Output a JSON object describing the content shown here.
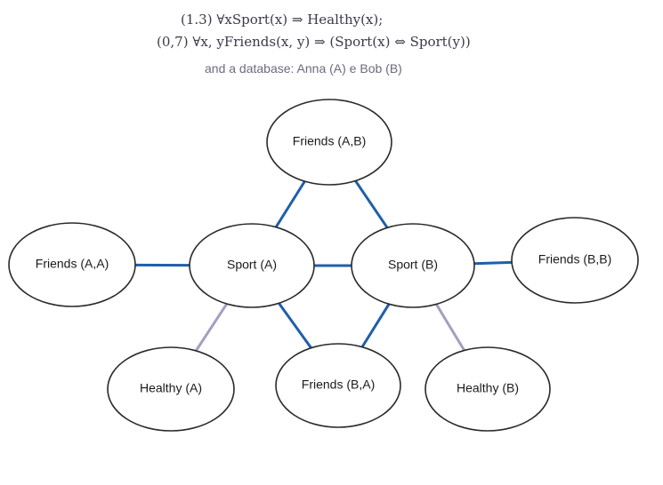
{
  "header": {
    "formula_1": "(1.3) ∀xSport(x) ⇒ Healthy(x);",
    "formula_2": "(0,7) ∀x, yFriends(x, y) ⇒ (Sport(x) ⇔ Sport(y))",
    "subtitle": "and a database: Anna (A) e Bob (B)"
  },
  "colors": {
    "friends_edge": "#1f5fa8",
    "healthy_edge": "#a49fbf"
  },
  "nodes": [
    {
      "id": "friends-ab",
      "label": "Friends (A,B)"
    },
    {
      "id": "friends-aa",
      "label": "Friends (A,A)"
    },
    {
      "id": "sport-a",
      "label": "Sport (A)"
    },
    {
      "id": "sport-b",
      "label": "Sport (B)"
    },
    {
      "id": "friends-bb",
      "label": "Friends (B,B)"
    },
    {
      "id": "healthy-a",
      "label": "Healthy (A)"
    },
    {
      "id": "friends-ba",
      "label": "Friends (B,A)"
    },
    {
      "id": "healthy-b",
      "label": "Healthy (B)"
    }
  ],
  "edges": [
    {
      "from": "friends-aa",
      "to": "sport-a",
      "kind": "friends"
    },
    {
      "from": "sport-a",
      "to": "sport-b",
      "kind": "friends"
    },
    {
      "from": "sport-b",
      "to": "friends-bb",
      "kind": "friends"
    },
    {
      "from": "friends-ab",
      "to": "sport-a",
      "kind": "friends"
    },
    {
      "from": "friends-ab",
      "to": "sport-b",
      "kind": "friends"
    },
    {
      "from": "sport-a",
      "to": "friends-ba",
      "kind": "friends"
    },
    {
      "from": "sport-b",
      "to": "friends-ba",
      "kind": "friends"
    },
    {
      "from": "sport-a",
      "to": "healthy-a",
      "kind": "healthy"
    },
    {
      "from": "sport-b",
      "to": "healthy-b",
      "kind": "healthy"
    }
  ]
}
